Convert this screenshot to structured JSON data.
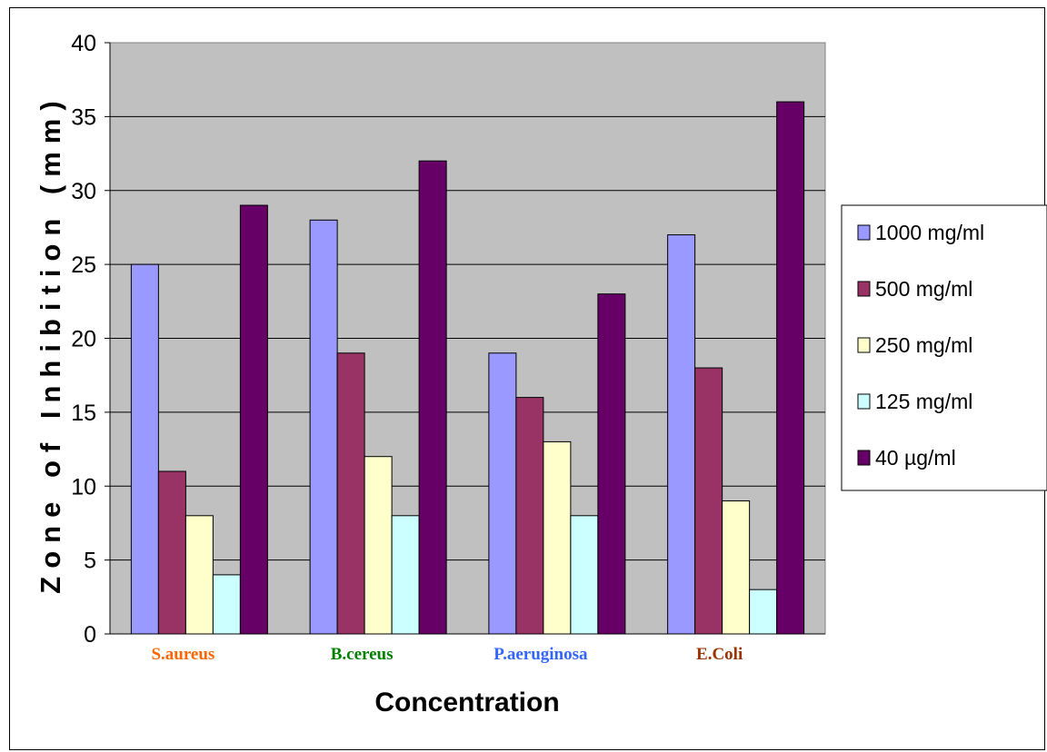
{
  "chart_data": {
    "type": "bar",
    "xlabel": "Concentration",
    "ylabel": "Zone of Inhibition (mm)",
    "ylim": [
      0,
      40
    ],
    "yticks": [
      0,
      5,
      10,
      15,
      20,
      25,
      30,
      35,
      40
    ],
    "grid": true,
    "legend_position": "right",
    "plot_background": "#C0C0C0",
    "categories": [
      "S.aureus",
      "B.cereus",
      "P.aeruginosa",
      "E.Coli"
    ],
    "category_colors": [
      "#FF6600",
      "#008000",
      "#3366FF",
      "#993300"
    ],
    "series": [
      {
        "name": "1000 mg/ml",
        "color": "#9999FF",
        "values": [
          25,
          28,
          19,
          27
        ]
      },
      {
        "name": "500 mg/ml",
        "color": "#993366",
        "values": [
          11,
          19,
          16,
          18
        ]
      },
      {
        "name": "250 mg/ml",
        "color": "#FFFFCC",
        "values": [
          8,
          12,
          13,
          9
        ]
      },
      {
        "name": "125 mg/ml",
        "color": "#CCFFFF",
        "values": [
          4,
          8,
          8,
          3
        ]
      },
      {
        "name": "40 µg/ml",
        "color": "#660066",
        "values": [
          29,
          32,
          23,
          36
        ]
      }
    ]
  }
}
